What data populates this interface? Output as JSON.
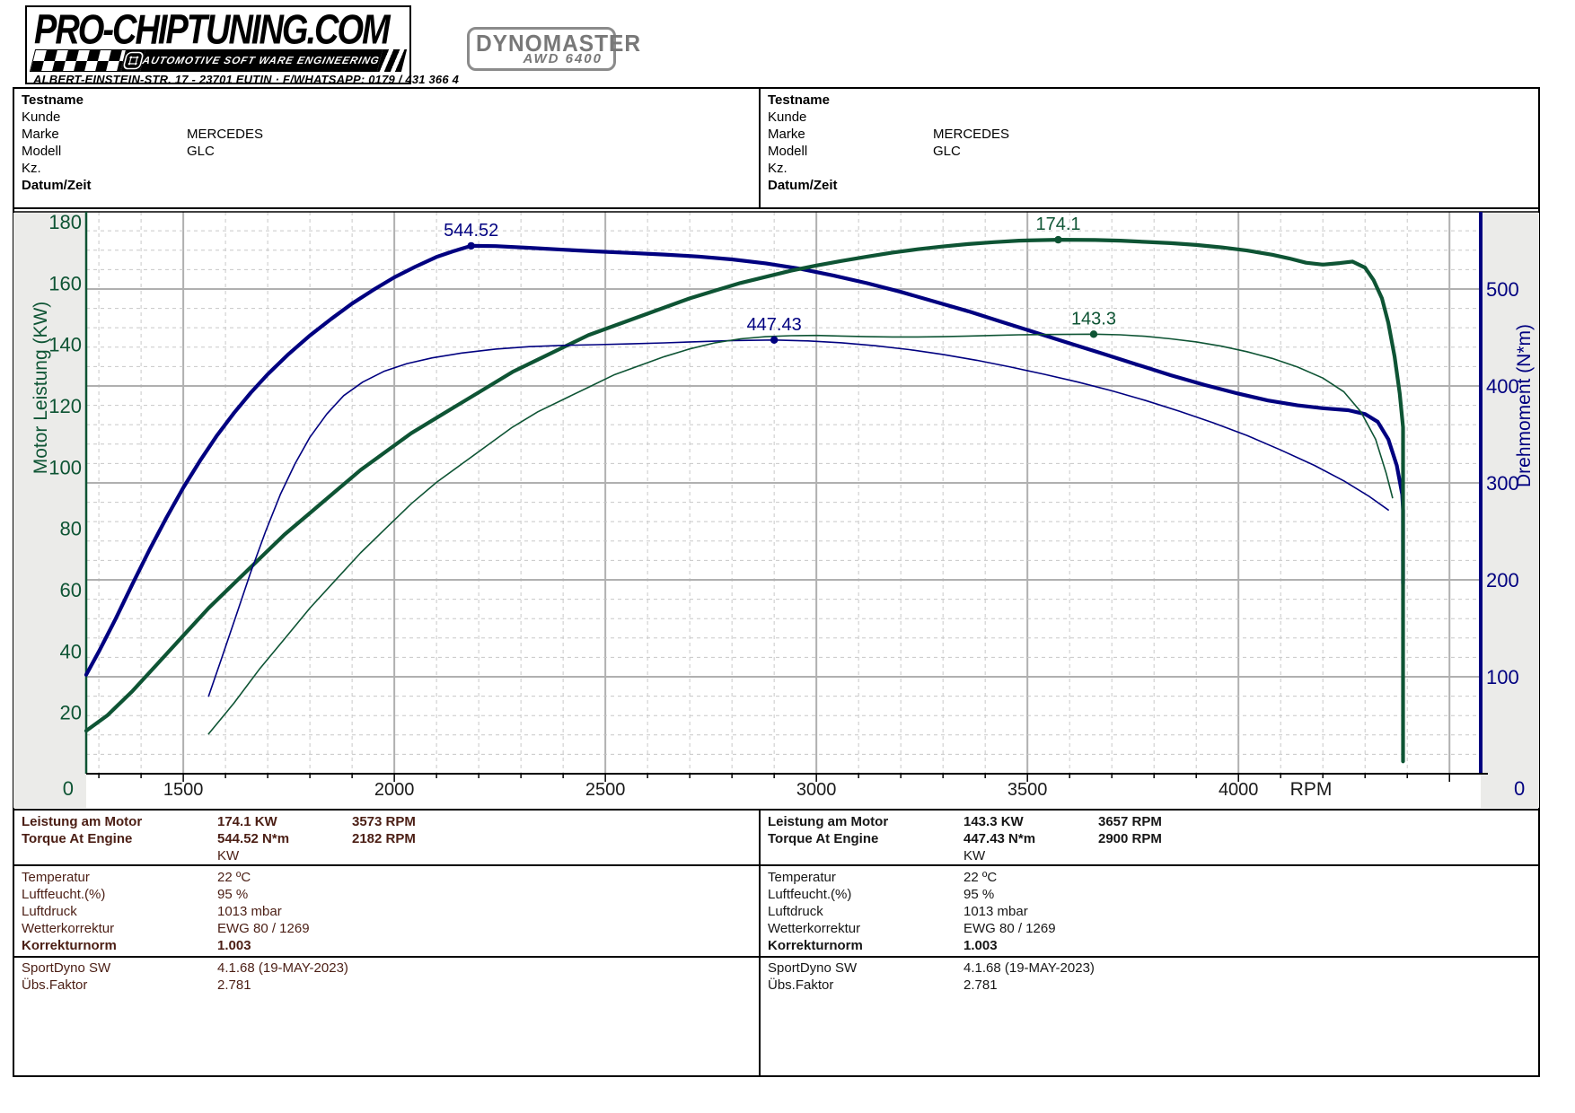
{
  "header": {
    "logo": {
      "title": "PRO-CHIPTUNING.COM",
      "banner": "AUTOMOTIVE SOFT WARE ENGINEERING",
      "address": "ALBERT-EINSTEIN-STR. 17 - 23701 EUTIN · F/WHATSAPP: 0179 / 431 366 4"
    },
    "device_badge": {
      "line1": "DYNOMASTER",
      "line2": "AWD 6400"
    }
  },
  "info_panels": [
    {
      "rows": [
        {
          "label": "Testname",
          "value": "",
          "bold": true
        },
        {
          "label": "Kunde",
          "value": "",
          "bold": false
        },
        {
          "label": "Marke",
          "value": "MERCEDES",
          "bold": false
        },
        {
          "label": "Modell",
          "value": "GLC",
          "bold": false
        },
        {
          "label": "Kz.",
          "value": "",
          "bold": false
        },
        {
          "label": "Datum/Zeit",
          "value": "",
          "bold": true
        }
      ]
    },
    {
      "rows": [
        {
          "label": "Testname",
          "value": "",
          "bold": true
        },
        {
          "label": "Kunde",
          "value": "",
          "bold": false
        },
        {
          "label": "Marke",
          "value": "MERCEDES",
          "bold": false
        },
        {
          "label": "Modell",
          "value": "GLC",
          "bold": false
        },
        {
          "label": "Kz.",
          "value": "",
          "bold": false
        },
        {
          "label": "Datum/Zeit",
          "value": "",
          "bold": true
        }
      ]
    }
  ],
  "chart_data": {
    "type": "line",
    "xlabel": "RPM",
    "ylabel_left": "Motor Leistung (KW)",
    "ylabel_right": "Drehmoment (N*m)",
    "xlim": [
      1270,
      4574
    ],
    "ylim_left": [
      0,
      183.2
    ],
    "ylim_right": [
      0,
      579.6
    ],
    "x_ticks": [
      1500,
      2000,
      2500,
      3000,
      3500,
      4000
    ],
    "x_minor_step": 100,
    "x_major_step": 500,
    "left_ticks": [
      0,
      20,
      40,
      60,
      80,
      100,
      120,
      140,
      160,
      180
    ],
    "right_ticks": [
      0,
      100,
      200,
      300,
      400,
      500
    ],
    "right_minor_step": 20,
    "grid": {
      "on": true,
      "major_color": "#b0b0b0",
      "minor_color": "#c8c8c8"
    },
    "colors": {
      "power": "#0E5434",
      "torque": "#000080",
      "frame": "#000000",
      "strip_bg": "#ebebe9",
      "tick_text": "#1a1a1a"
    },
    "series": [
      {
        "name": "torque-run1",
        "axis": "right",
        "color": "#000080",
        "width": 4.2,
        "points": [
          [
            1270,
            102
          ],
          [
            1300,
            126
          ],
          [
            1340,
            160
          ],
          [
            1380,
            196
          ],
          [
            1420,
            231
          ],
          [
            1460,
            264
          ],
          [
            1500,
            295
          ],
          [
            1540,
            323
          ],
          [
            1580,
            349
          ],
          [
            1620,
            372
          ],
          [
            1660,
            393
          ],
          [
            1700,
            412
          ],
          [
            1750,
            433
          ],
          [
            1800,
            452
          ],
          [
            1850,
            469
          ],
          [
            1900,
            485
          ],
          [
            1950,
            499
          ],
          [
            2000,
            512
          ],
          [
            2050,
            523
          ],
          [
            2100,
            533
          ],
          [
            2140,
            539
          ],
          [
            2182,
            544.5
          ],
          [
            2240,
            544.2
          ],
          [
            2320,
            542.5
          ],
          [
            2400,
            540.5
          ],
          [
            2480,
            538.8
          ],
          [
            2560,
            537.2
          ],
          [
            2640,
            535.5
          ],
          [
            2720,
            533.5
          ],
          [
            2800,
            530.5
          ],
          [
            2880,
            526.5
          ],
          [
            2960,
            521
          ],
          [
            3040,
            514
          ],
          [
            3120,
            506
          ],
          [
            3200,
            497
          ],
          [
            3280,
            487
          ],
          [
            3360,
            477
          ],
          [
            3440,
            466
          ],
          [
            3520,
            455
          ],
          [
            3600,
            444
          ],
          [
            3680,
            433
          ],
          [
            3760,
            422
          ],
          [
            3840,
            411
          ],
          [
            3920,
            401
          ],
          [
            4000,
            392
          ],
          [
            4070,
            385
          ],
          [
            4140,
            380
          ],
          [
            4200,
            377
          ],
          [
            4260,
            375
          ],
          [
            4300,
            371
          ],
          [
            4330,
            363
          ],
          [
            4355,
            345
          ],
          [
            4375,
            318
          ],
          [
            4388,
            288
          ],
          [
            4390,
            272
          ],
          [
            4390,
            196
          ]
        ]
      },
      {
        "name": "power-run1",
        "axis": "left",
        "color": "#0E5434",
        "width": 4.2,
        "points": [
          [
            1270,
            14
          ],
          [
            1320,
            19
          ],
          [
            1380,
            27
          ],
          [
            1440,
            36
          ],
          [
            1500,
            45
          ],
          [
            1560,
            54
          ],
          [
            1620,
            62
          ],
          [
            1680,
            70
          ],
          [
            1740,
            78
          ],
          [
            1800,
            85
          ],
          [
            1860,
            92
          ],
          [
            1920,
            99
          ],
          [
            1980,
            105
          ],
          [
            2040,
            111
          ],
          [
            2100,
            116
          ],
          [
            2160,
            121
          ],
          [
            2220,
            126
          ],
          [
            2280,
            131
          ],
          [
            2340,
            135
          ],
          [
            2400,
            139
          ],
          [
            2460,
            143
          ],
          [
            2520,
            146
          ],
          [
            2580,
            149
          ],
          [
            2640,
            152
          ],
          [
            2700,
            155
          ],
          [
            2760,
            157.5
          ],
          [
            2820,
            160
          ],
          [
            2880,
            162
          ],
          [
            2940,
            164
          ],
          [
            3000,
            165.7
          ],
          [
            3060,
            167.2
          ],
          [
            3120,
            168.6
          ],
          [
            3180,
            169.9
          ],
          [
            3240,
            171
          ],
          [
            3300,
            171.9
          ],
          [
            3360,
            172.7
          ],
          [
            3420,
            173.3
          ],
          [
            3480,
            173.8
          ],
          [
            3573,
            174.1
          ],
          [
            3660,
            174
          ],
          [
            3720,
            173.8
          ],
          [
            3780,
            173.4
          ],
          [
            3840,
            173
          ],
          [
            3900,
            172.4
          ],
          [
            3960,
            171.6
          ],
          [
            4020,
            170.6
          ],
          [
            4080,
            169.2
          ],
          [
            4120,
            168
          ],
          [
            4160,
            166.6
          ],
          [
            4200,
            166
          ],
          [
            4240,
            166.5
          ],
          [
            4270,
            167
          ],
          [
            4300,
            165
          ],
          [
            4320,
            161
          ],
          [
            4340,
            155
          ],
          [
            4355,
            147
          ],
          [
            4370,
            136
          ],
          [
            4382,
            124
          ],
          [
            4390,
            113
          ],
          [
            4390,
            4
          ]
        ]
      },
      {
        "name": "torque-run2",
        "axis": "right",
        "color": "#000080",
        "width": 1.6,
        "points": [
          [
            1560,
            80
          ],
          [
            1590,
            118
          ],
          [
            1625,
            163
          ],
          [
            1660,
            208
          ],
          [
            1695,
            250
          ],
          [
            1730,
            288
          ],
          [
            1765,
            320
          ],
          [
            1800,
            347
          ],
          [
            1840,
            371
          ],
          [
            1880,
            390
          ],
          [
            1925,
            404
          ],
          [
            1975,
            415
          ],
          [
            2030,
            423
          ],
          [
            2090,
            429
          ],
          [
            2160,
            434
          ],
          [
            2240,
            438
          ],
          [
            2320,
            440.5
          ],
          [
            2400,
            441.8
          ],
          [
            2480,
            442.6
          ],
          [
            2560,
            443.4
          ],
          [
            2640,
            444.4
          ],
          [
            2720,
            445.6
          ],
          [
            2800,
            446.8
          ],
          [
            2900,
            447.4
          ],
          [
            2980,
            446.5
          ],
          [
            3060,
            444.5
          ],
          [
            3140,
            441.5
          ],
          [
            3220,
            437.5
          ],
          [
            3300,
            432.5
          ],
          [
            3380,
            426.5
          ],
          [
            3460,
            419.5
          ],
          [
            3540,
            412
          ],
          [
            3620,
            404
          ],
          [
            3700,
            395
          ],
          [
            3780,
            385
          ],
          [
            3860,
            374
          ],
          [
            3940,
            362
          ],
          [
            4020,
            349
          ],
          [
            4100,
            334
          ],
          [
            4180,
            318
          ],
          [
            4250,
            302
          ],
          [
            4310,
            286
          ],
          [
            4355,
            272
          ]
        ]
      },
      {
        "name": "power-run2",
        "axis": "left",
        "color": "#0E5434",
        "width": 1.6,
        "points": [
          [
            1560,
            13
          ],
          [
            1620,
            23
          ],
          [
            1680,
            34
          ],
          [
            1740,
            44
          ],
          [
            1800,
            54
          ],
          [
            1860,
            63
          ],
          [
            1920,
            72
          ],
          [
            1980,
            80
          ],
          [
            2040,
            88
          ],
          [
            2100,
            95
          ],
          [
            2160,
            101
          ],
          [
            2220,
            107
          ],
          [
            2280,
            113
          ],
          [
            2340,
            118
          ],
          [
            2400,
            122
          ],
          [
            2460,
            126
          ],
          [
            2520,
            130
          ],
          [
            2580,
            133
          ],
          [
            2640,
            136
          ],
          [
            2700,
            138.5
          ],
          [
            2760,
            140.5
          ],
          [
            2820,
            141.8
          ],
          [
            2880,
            142.5
          ],
          [
            2940,
            142.8
          ],
          [
            3000,
            142.9
          ],
          [
            3060,
            142.7
          ],
          [
            3120,
            142.5
          ],
          [
            3180,
            142.4
          ],
          [
            3240,
            142.4
          ],
          [
            3300,
            142.5
          ],
          [
            3360,
            142.7
          ],
          [
            3420,
            142.9
          ],
          [
            3480,
            143.1
          ],
          [
            3540,
            143.2
          ],
          [
            3657,
            143.3
          ],
          [
            3720,
            143.1
          ],
          [
            3780,
            142.6
          ],
          [
            3840,
            141.8
          ],
          [
            3900,
            140.8
          ],
          [
            3960,
            139.4
          ],
          [
            4020,
            137.6
          ],
          [
            4080,
            135.4
          ],
          [
            4140,
            132.6
          ],
          [
            4200,
            129
          ],
          [
            4250,
            124.5
          ],
          [
            4290,
            118
          ],
          [
            4325,
            109
          ],
          [
            4350,
            98
          ],
          [
            4365,
            90
          ]
        ]
      }
    ],
    "annotations": [
      {
        "text": "544.52",
        "rpm": 2182,
        "value": 544.52,
        "axis": "right",
        "color": "#000080"
      },
      {
        "text": "174.1",
        "rpm": 3573,
        "value": 174.1,
        "axis": "left",
        "color": "#0E5434"
      },
      {
        "text": "447.43",
        "rpm": 2900,
        "value": 447.43,
        "axis": "right",
        "color": "#000080"
      },
      {
        "text": "143.3",
        "rpm": 3657,
        "value": 143.3,
        "axis": "left",
        "color": "#0E5434"
      }
    ]
  },
  "results_panels": [
    {
      "text_color": "#4B1E14",
      "peak_rows": [
        {
          "label": "Leistung am Motor",
          "value": "174.1 KW",
          "rpm": "3573 RPM"
        },
        {
          "label": "Torque At Engine",
          "value": "544.52 N*m",
          "rpm": "2182 RPM"
        }
      ],
      "unit_row": "KW",
      "env_rows": [
        {
          "label": "Temperatur",
          "value": "22 ºC",
          "bold": false
        },
        {
          "label": "Luftfeucht.(%)",
          "value": "95 %",
          "bold": false
        },
        {
          "label": "Luftdruck",
          "value": "1013 mbar",
          "bold": false
        },
        {
          "label": "Wetterkorrektur",
          "value": "EWG 80 / 1269",
          "bold": false
        },
        {
          "label": "Korrekturnorm",
          "value": "1.003",
          "bold": true
        }
      ],
      "sw_rows": [
        {
          "label": "SportDyno SW",
          "value": "4.1.68 (19-MAY-2023)"
        },
        {
          "label": "Übs.Faktor",
          "value": "2.781"
        }
      ]
    },
    {
      "text_color": "#161616",
      "peak_rows": [
        {
          "label": "Leistung am Motor",
          "value": "143.3 KW",
          "rpm": "3657 RPM"
        },
        {
          "label": "Torque At Engine",
          "value": "447.43 N*m",
          "rpm": "2900 RPM"
        }
      ],
      "unit_row": "KW",
      "env_rows": [
        {
          "label": "Temperatur",
          "value": "22 ºC",
          "bold": false
        },
        {
          "label": "Luftfeucht.(%)",
          "value": "95 %",
          "bold": false
        },
        {
          "label": "Luftdruck",
          "value": "1013 mbar",
          "bold": false
        },
        {
          "label": "Wetterkorrektur",
          "value": "EWG 80 / 1269",
          "bold": false
        },
        {
          "label": "Korrekturnorm",
          "value": "1.003",
          "bold": true
        }
      ],
      "sw_rows": [
        {
          "label": "SportDyno SW",
          "value": "4.1.68 (19-MAY-2023)"
        },
        {
          "label": "Übs.Faktor",
          "value": "2.781"
        }
      ]
    }
  ]
}
